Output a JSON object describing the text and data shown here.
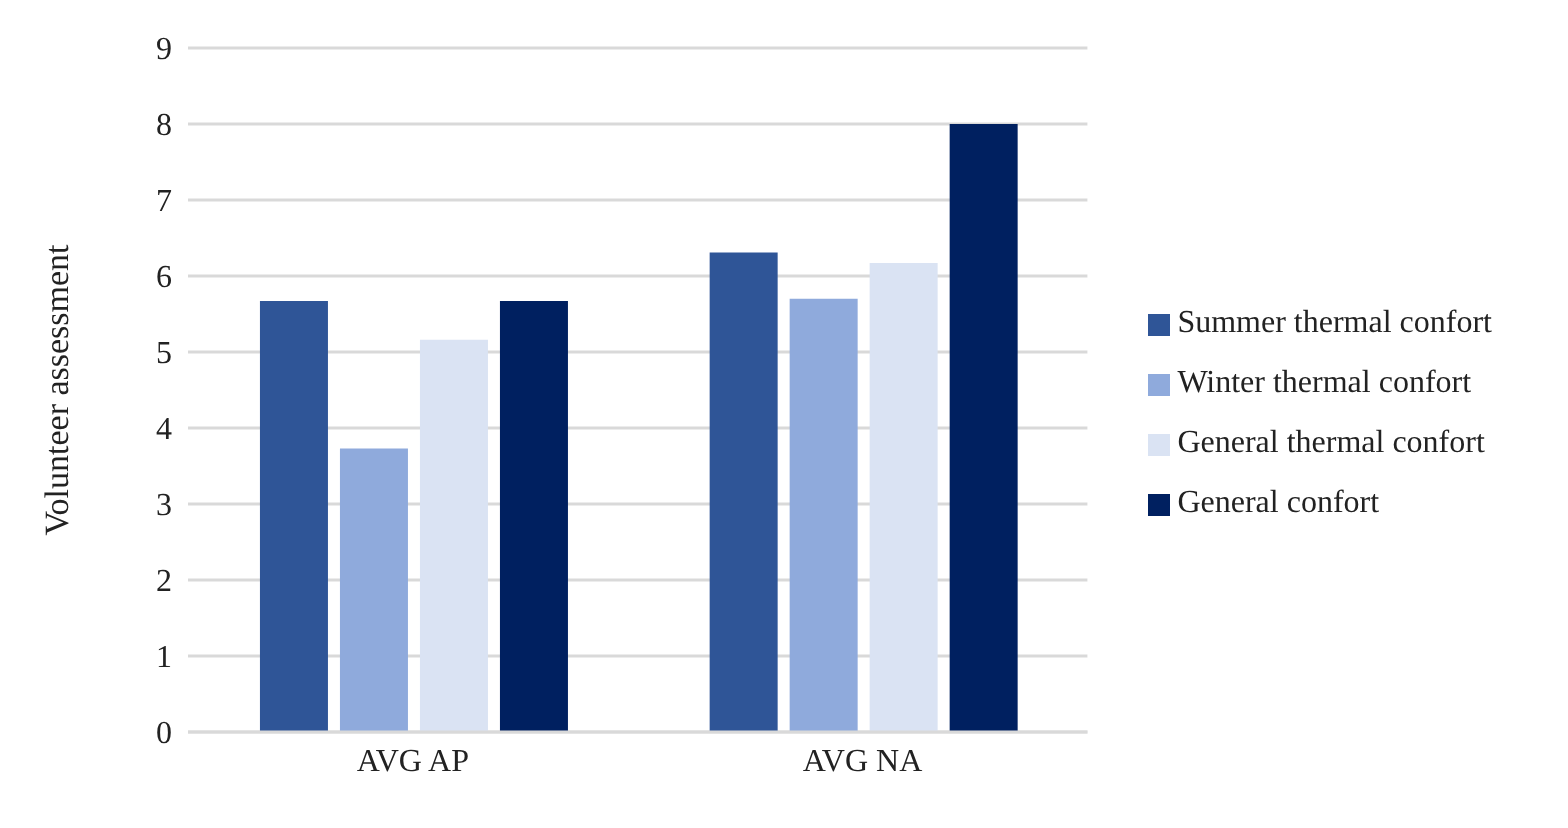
{
  "chart_data": {
    "type": "bar",
    "ylabel": "Volunteer assessment",
    "categories": [
      "AVG  AP",
      "AVG  NA"
    ],
    "series": [
      {
        "name": "Summer thermal confort",
        "color": "#2f5597",
        "values": [
          5.67,
          6.31
        ]
      },
      {
        "name": "Winter thermal confort",
        "color": "#8faadc",
        "values": [
          3.73,
          5.7
        ]
      },
      {
        "name": "General thermal confort",
        "color": "#dae3f3",
        "values": [
          5.16,
          6.17
        ]
      },
      {
        "name": "General confort",
        "color": "#002060",
        "values": [
          5.67,
          8.0
        ]
      }
    ],
    "ylim": [
      0,
      9
    ],
    "yticks": [
      0,
      1,
      2,
      3,
      4,
      5,
      6,
      7,
      8,
      9
    ],
    "grid": "y",
    "legend": "right"
  }
}
